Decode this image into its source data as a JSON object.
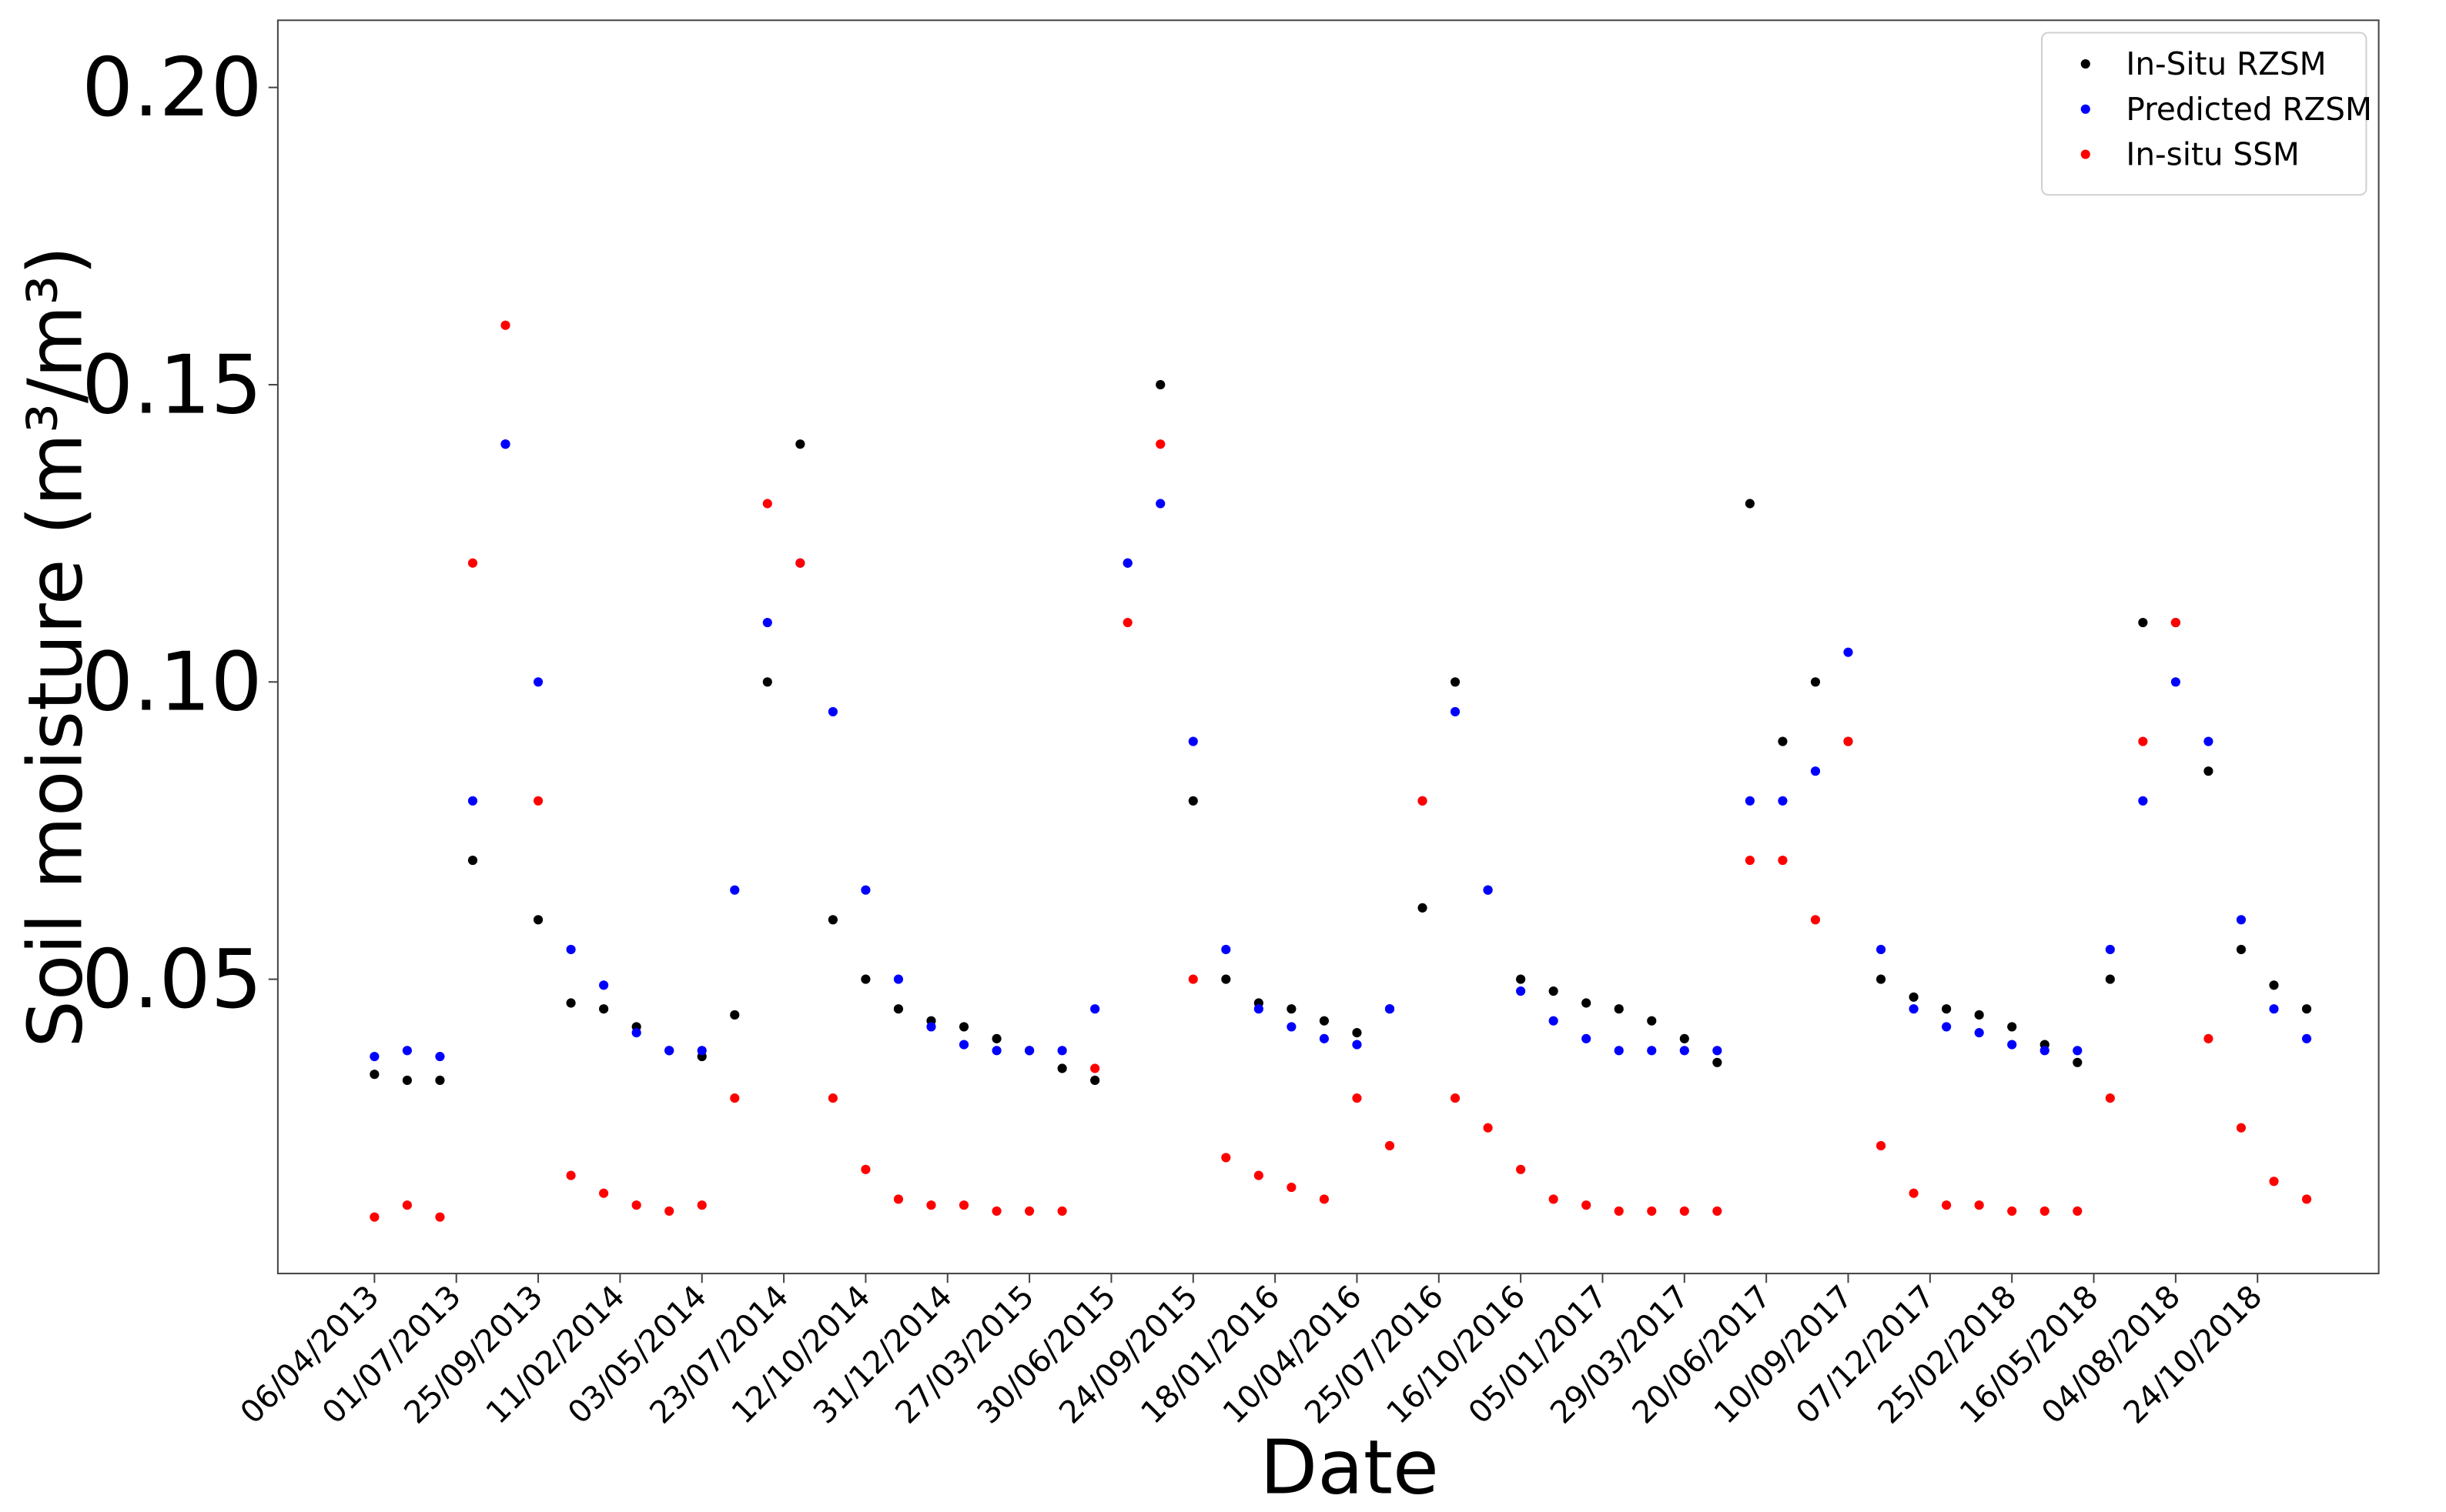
{
  "chart_data": {
    "type": "scatter",
    "x_label": "Date",
    "y_label": "Soil moisture (m³/m³)",
    "x": [
      0,
      40,
      80,
      120,
      160,
      200,
      240,
      280,
      320,
      360,
      400,
      440,
      480,
      520,
      560,
      600,
      640,
      680,
      720,
      760,
      800,
      840,
      880,
      920,
      960,
      1000,
      1040,
      1080,
      1120,
      1160,
      1200,
      1240,
      1280,
      1320,
      1360,
      1400,
      1440,
      1480,
      1520,
      1560,
      1600,
      1640,
      1680,
      1720,
      1760,
      1800,
      1840,
      1880,
      1920,
      1960,
      2000,
      2040,
      2080,
      2120,
      2160,
      2200,
      2240,
      2280,
      2320,
      2360
    ],
    "series": [
      {
        "name": "In-Situ RZSM",
        "color": "#000000",
        "values": [
          0.034,
          0.033,
          0.033,
          0.07,
          0.14,
          0.06,
          0.046,
          0.045,
          0.042,
          0.038,
          0.037,
          0.044,
          0.1,
          0.14,
          0.06,
          0.05,
          0.045,
          0.043,
          0.042,
          0.04,
          0.038,
          0.035,
          0.033,
          0.12,
          0.15,
          0.08,
          0.05,
          0.046,
          0.045,
          0.043,
          0.041,
          0.045,
          0.062,
          0.1,
          0.065,
          0.05,
          0.048,
          0.046,
          0.045,
          0.043,
          0.04,
          0.036,
          0.13,
          0.09,
          0.1,
          0.09,
          0.05,
          0.047,
          0.045,
          0.044,
          0.042,
          0.039,
          0.036,
          0.05,
          0.11,
          0.11,
          0.085,
          0.055,
          0.049,
          0.045
        ]
      },
      {
        "name": "Predicted RZSM",
        "color": "#0000ff",
        "values": [
          0.037,
          0.038,
          0.037,
          0.08,
          0.14,
          0.1,
          0.055,
          0.049,
          0.041,
          0.038,
          0.038,
          0.065,
          0.11,
          0.12,
          0.095,
          0.065,
          0.05,
          0.042,
          0.039,
          0.038,
          0.038,
          0.038,
          0.045,
          0.12,
          0.13,
          0.09,
          0.055,
          0.045,
          0.042,
          0.04,
          0.039,
          0.045,
          0.08,
          0.095,
          0.065,
          0.048,
          0.043,
          0.04,
          0.038,
          0.038,
          0.038,
          0.038,
          0.08,
          0.08,
          0.085,
          0.105,
          0.055,
          0.045,
          0.042,
          0.041,
          0.039,
          0.038,
          0.038,
          0.055,
          0.08,
          0.1,
          0.09,
          0.06,
          0.045,
          0.04
        ]
      },
      {
        "name": "In-situ SSM",
        "color": "#ff0000",
        "values": [
          0.01,
          0.012,
          0.01,
          0.12,
          0.16,
          0.08,
          0.017,
          0.014,
          0.012,
          0.011,
          0.012,
          0.03,
          0.13,
          0.12,
          0.03,
          0.018,
          0.013,
          0.012,
          0.012,
          0.011,
          0.011,
          0.011,
          0.035,
          0.11,
          0.14,
          0.05,
          0.02,
          0.017,
          0.015,
          0.013,
          0.03,
          0.022,
          0.08,
          0.03,
          0.025,
          0.018,
          0.013,
          0.012,
          0.011,
          0.011,
          0.011,
          0.011,
          0.07,
          0.07,
          0.06,
          0.09,
          0.022,
          0.014,
          0.012,
          0.012,
          0.011,
          0.011,
          0.011,
          0.03,
          0.09,
          0.11,
          0.04,
          0.025,
          0.016,
          0.013
        ]
      }
    ],
    "xlim": [
      -118,
      2448
    ],
    "xticks": [
      {
        "value": 0,
        "label": "06/04/2013"
      },
      {
        "value": 100,
        "label": "01/07/2013"
      },
      {
        "value": 200,
        "label": "25/09/2013"
      },
      {
        "value": 300,
        "label": "11/02/2014"
      },
      {
        "value": 400,
        "label": "03/05/2014"
      },
      {
        "value": 500,
        "label": "23/07/2014"
      },
      {
        "value": 600,
        "label": "12/10/2014"
      },
      {
        "value": 700,
        "label": "31/12/2014"
      },
      {
        "value": 800,
        "label": "27/03/2015"
      },
      {
        "value": 900,
        "label": "30/06/2015"
      },
      {
        "value": 1000,
        "label": "24/09/2015"
      },
      {
        "value": 1100,
        "label": "18/01/2016"
      },
      {
        "value": 1200,
        "label": "10/04/2016"
      },
      {
        "value": 1300,
        "label": "25/07/2016"
      },
      {
        "value": 1400,
        "label": "16/10/2016"
      },
      {
        "value": 1500,
        "label": "05/01/2017"
      },
      {
        "value": 1600,
        "label": "29/03/2017"
      },
      {
        "value": 1700,
        "label": "20/06/2017"
      },
      {
        "value": 1800,
        "label": "10/09/2017"
      },
      {
        "value": 1900,
        "label": "07/12/2017"
      },
      {
        "value": 2000,
        "label": "25/02/2018"
      },
      {
        "value": 2100,
        "label": "16/05/2018"
      },
      {
        "value": 2200,
        "label": "04/08/2018"
      },
      {
        "value": 2300,
        "label": "24/10/2018"
      }
    ],
    "ylim": [
      0.0005,
      0.2113
    ],
    "yticks": [
      0.05,
      {
        "value": 0.1,
        "label": "0.10"
      },
      0.15,
      {
        "value": 0.2,
        "label": "0.20"
      }
    ],
    "legend": "upper right"
  }
}
